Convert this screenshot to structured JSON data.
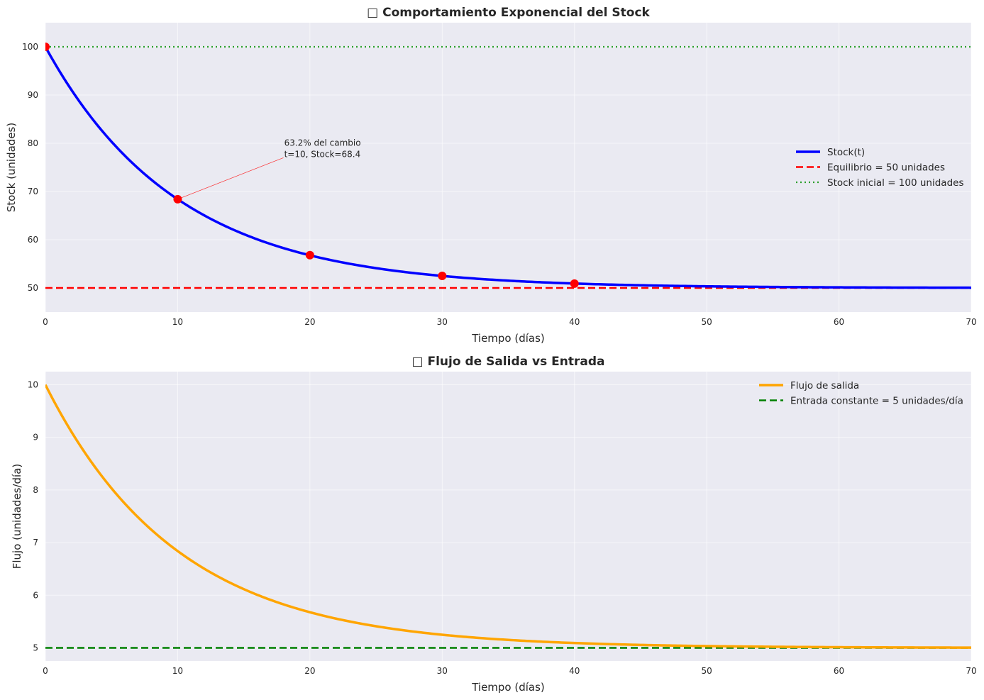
{
  "chart_data": [
    {
      "type": "line",
      "title": "□ Comportamiento Exponencial del Stock",
      "xlabel": "Tiempo (días)",
      "ylabel": "Stock (unidades)",
      "xlim": [
        0,
        70
      ],
      "ylim": [
        45,
        105
      ],
      "xticks": [
        0,
        10,
        20,
        30,
        40,
        50,
        60,
        70
      ],
      "yticks": [
        50,
        60,
        70,
        80,
        90,
        100
      ],
      "grid": true,
      "legend_position": "center-right",
      "series": [
        {
          "name": "Stock(t)",
          "style": "solid",
          "color": "#0000ff",
          "equilibrium": 50,
          "initial": 100,
          "tau": 10
        },
        {
          "name": "Equilibrio = 50 unidades",
          "style": "dashed",
          "color": "#ff0000",
          "value": 50
        },
        {
          "name": "Stock inicial = 100 unidades",
          "style": "dotted",
          "color": "#2ca02c",
          "value": 100
        }
      ],
      "markers": {
        "color": "#ff0000",
        "points": [
          {
            "x": 0,
            "y": 100
          },
          {
            "x": 10,
            "y": 68.4
          },
          {
            "x": 20,
            "y": 56.8
          },
          {
            "x": 30,
            "y": 52.5
          },
          {
            "x": 40,
            "y": 50.9
          }
        ]
      },
      "annotation": {
        "lines": [
          "63.2% del cambio",
          "t=10, Stock=68.4"
        ],
        "x": 10,
        "y": 68.4,
        "text_x": 18,
        "text_y": 77
      }
    },
    {
      "type": "line",
      "title": "□ Flujo de Salida vs Entrada",
      "xlabel": "Tiempo (días)",
      "ylabel": "Flujo (unidades/día)",
      "xlim": [
        0,
        70
      ],
      "ylim": [
        4.75,
        10.25
      ],
      "xticks": [
        0,
        10,
        20,
        30,
        40,
        50,
        60,
        70
      ],
      "yticks": [
        5,
        6,
        7,
        8,
        9,
        10
      ],
      "grid": true,
      "legend_position": "top-right",
      "series": [
        {
          "name": "Flujo de salida",
          "style": "solid",
          "color": "#ffa500",
          "equilibrium": 5,
          "initial": 10,
          "tau": 10
        },
        {
          "name": "Entrada constante = 5 unidades/día",
          "style": "dashed",
          "color": "#008000",
          "value": 5
        }
      ]
    }
  ]
}
